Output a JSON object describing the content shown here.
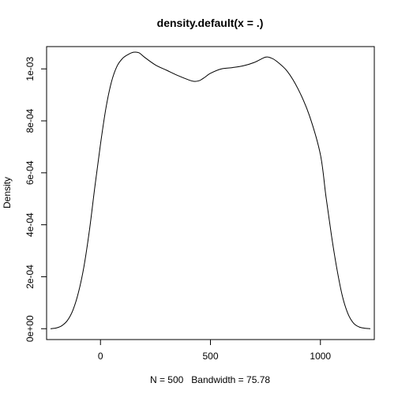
{
  "chart_data": {
    "type": "line",
    "title": "density.default(x = .)",
    "xlabel": "N = 500   Bandwidth = 75.78",
    "ylabel": "Density",
    "xlim": [
      -245,
      1245
    ],
    "ylim": [
      -4.18e-05,
      0.0010858
    ],
    "x_ticks": [
      0,
      500,
      1000
    ],
    "x_tick_labels": [
      "0",
      "500",
      "1000"
    ],
    "y_ticks": [
      0,
      0.0002,
      0.0004,
      0.0006,
      0.0008,
      0.001
    ],
    "y_tick_labels": [
      "0e+00",
      "2e-04",
      "4e-04",
      "6e-04",
      "8e-04",
      "1e-03"
    ],
    "grid": false,
    "series": [
      {
        "color": "#000000",
        "x": [
          -227,
          -200,
          -175,
          -150,
          -125,
          -100,
          -75,
          -50,
          -25,
          0,
          25,
          50,
          75,
          100,
          125,
          150,
          175,
          200,
          250,
          300,
          350,
          400,
          425,
          450,
          475,
          500,
          550,
          600,
          650,
          700,
          750,
          775,
          800,
          850,
          900,
          950,
          1000,
          1025,
          1050,
          1075,
          1100,
          1125,
          1150,
          1175,
          1200,
          1227
        ],
        "y": [
          0.0,
          3e-06,
          1.2e-05,
          3.2e-05,
          7.2e-05,
          0.00014,
          0.00024,
          0.00038,
          0.00055,
          0.00071,
          0.00085,
          0.00095,
          0.00101,
          0.00104,
          0.001055,
          0.001064,
          0.001062,
          0.001045,
          0.001015,
          0.000995,
          0.000975,
          0.000958,
          0.000952,
          0.000955,
          0.000968,
          0.000983,
          0.001,
          0.001005,
          0.001012,
          0.001025,
          0.001045,
          0.001042,
          0.00103,
          0.00099,
          0.00092,
          0.00082,
          0.00067,
          0.00051,
          0.00036,
          0.00023,
          0.000125,
          5.8e-05,
          2.2e-05,
          7e-06,
          2e-06,
          0.0
        ]
      }
    ]
  }
}
